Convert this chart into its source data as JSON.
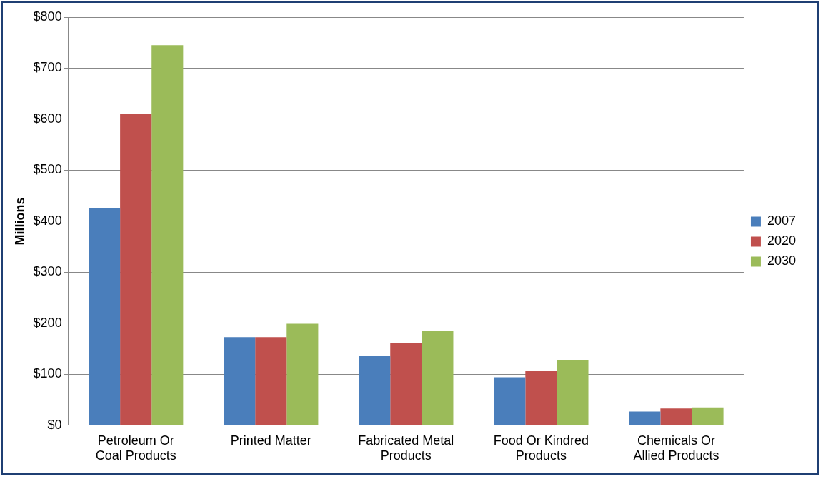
{
  "chart_data": {
    "type": "bar",
    "ylabel": "Millions",
    "categories": [
      "Petroleum Or Coal Products",
      "Printed Matter",
      "Fabricated Metal Products",
      "Food Or Kindred Products",
      "Chemicals Or Allied Products"
    ],
    "series": [
      {
        "name": "2007",
        "color": "#4a7ebb",
        "values": [
          425,
          173,
          136,
          94,
          27
        ]
      },
      {
        "name": "2020",
        "color": "#c0504d",
        "values": [
          610,
          173,
          161,
          106,
          33
        ]
      },
      {
        "name": "2030",
        "color": "#9bbb59",
        "values": [
          745,
          199,
          185,
          128,
          35
        ]
      }
    ],
    "ylim": [
      0,
      800
    ],
    "yticks": [
      {
        "value": 0,
        "label": "$0"
      },
      {
        "value": 100,
        "label": "$100"
      },
      {
        "value": 200,
        "label": "$200"
      },
      {
        "value": 300,
        "label": "$300"
      },
      {
        "value": 400,
        "label": "$400"
      },
      {
        "value": 500,
        "label": "$500"
      },
      {
        "value": 600,
        "label": "$600"
      },
      {
        "value": 700,
        "label": "$700"
      },
      {
        "value": 800,
        "label": "$800"
      }
    ],
    "grid": "y",
    "legend": "right"
  }
}
